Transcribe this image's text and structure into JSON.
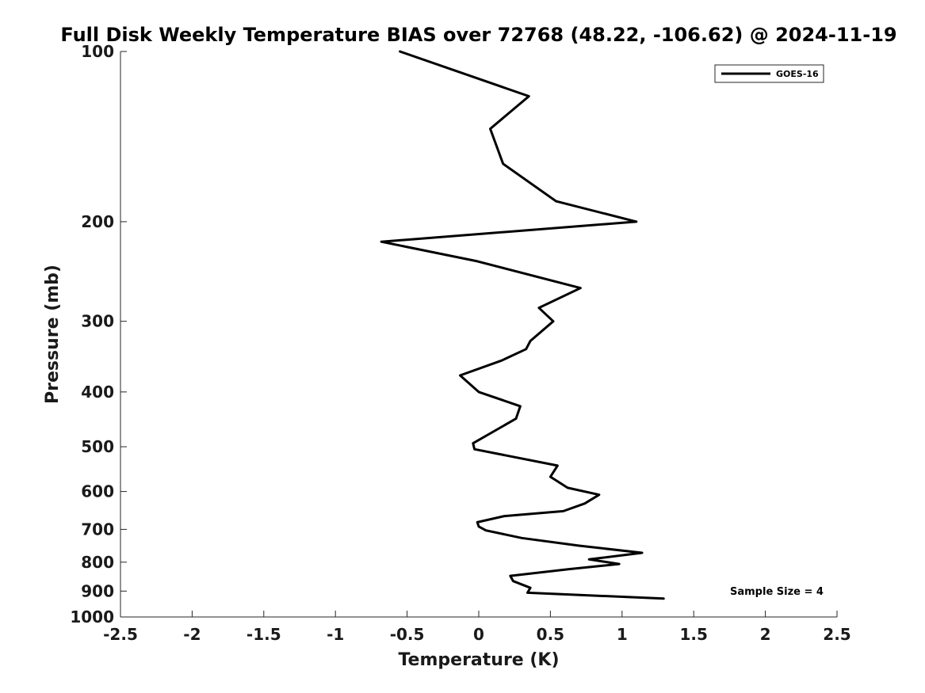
{
  "chart_data": {
    "type": "line",
    "title": "Full Disk Weekly Temperature BIAS over 72768 (48.22, -106.62) @ 2024-11-19",
    "xlabel": "Temperature (K)",
    "ylabel": "Pressure (mb)",
    "xlim": [
      -2.5,
      2.5
    ],
    "ylim": [
      100,
      1000
    ],
    "y_scale": "log",
    "y_reversed": true,
    "grid": false,
    "legend_position": "top-right",
    "x_ticks": [
      "-2.5",
      "-2",
      "-1.5",
      "-1",
      "-0.5",
      "0",
      "0.5",
      "1",
      "1.5",
      "2",
      "2.5"
    ],
    "y_ticks": [
      "100",
      "200",
      "300",
      "400",
      "500",
      "600",
      "700",
      "800",
      "900",
      "1000"
    ],
    "annotation": "Sample Size = 4",
    "series": [
      {
        "name": "GOES-16",
        "color": "#000000",
        "x": [
          -0.55,
          0.35,
          0.08,
          0.17,
          0.54,
          1.1,
          -0.68,
          -0.01,
          0.71,
          0.42,
          0.52,
          0.36,
          0.33,
          0.16,
          -0.13,
          0.0,
          0.29,
          0.26,
          -0.04,
          -0.03,
          0.55,
          0.5,
          0.62,
          0.84,
          0.74,
          0.59,
          0.18,
          -0.01,
          0.0,
          0.05,
          0.3,
          0.7,
          1.14,
          0.77,
          0.98,
          0.63,
          0.22,
          0.24,
          0.36,
          0.34,
          1.29
        ],
        "y": [
          100,
          120,
          137,
          158,
          184,
          200,
          217,
          235,
          262,
          284,
          300,
          325,
          336,
          352,
          374,
          400,
          424,
          446,
          493,
          505,
          540,
          565,
          591,
          608,
          630,
          650,
          663,
          680,
          692,
          703,
          725,
          748,
          770,
          791,
          806,
          823,
          846,
          864,
          888,
          906,
          928
        ]
      }
    ]
  }
}
